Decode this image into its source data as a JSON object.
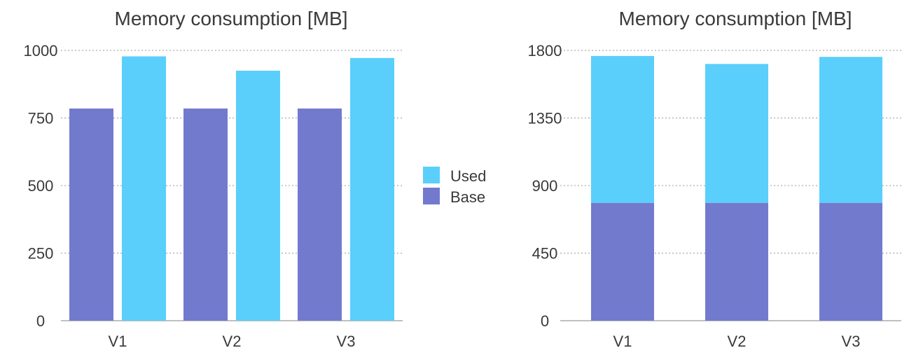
{
  "chart_data": [
    {
      "type": "bar",
      "title": "Memory consumption [MB]",
      "categories": [
        "V1",
        "V2",
        "V3"
      ],
      "series": [
        {
          "name": "Base",
          "values": [
            785,
            785,
            785
          ]
        },
        {
          "name": "Used",
          "values": [
            978,
            925,
            972
          ]
        }
      ],
      "ylim": [
        0,
        1000
      ],
      "yticks": [
        0,
        250,
        500,
        750,
        1000
      ],
      "grid": true,
      "stacked": false
    },
    {
      "type": "bar",
      "title": "Memory consumption [MB]",
      "categories": [
        "V1",
        "V2",
        "V3"
      ],
      "series": [
        {
          "name": "Base",
          "values": [
            785,
            785,
            785
          ]
        },
        {
          "name": "Used",
          "values": [
            978,
            925,
            972
          ]
        }
      ],
      "ylim": [
        0,
        1800
      ],
      "yticks": [
        0,
        450,
        900,
        1350,
        1800
      ],
      "grid": true,
      "stacked": true
    }
  ],
  "legend": {
    "placement": "center",
    "items": [
      {
        "label": "Used",
        "color": "#5ACFFB"
      },
      {
        "label": "Base",
        "color": "#727ACE"
      }
    ]
  },
  "colors": {
    "base": "#727ACE",
    "used": "#5ACFFB"
  }
}
